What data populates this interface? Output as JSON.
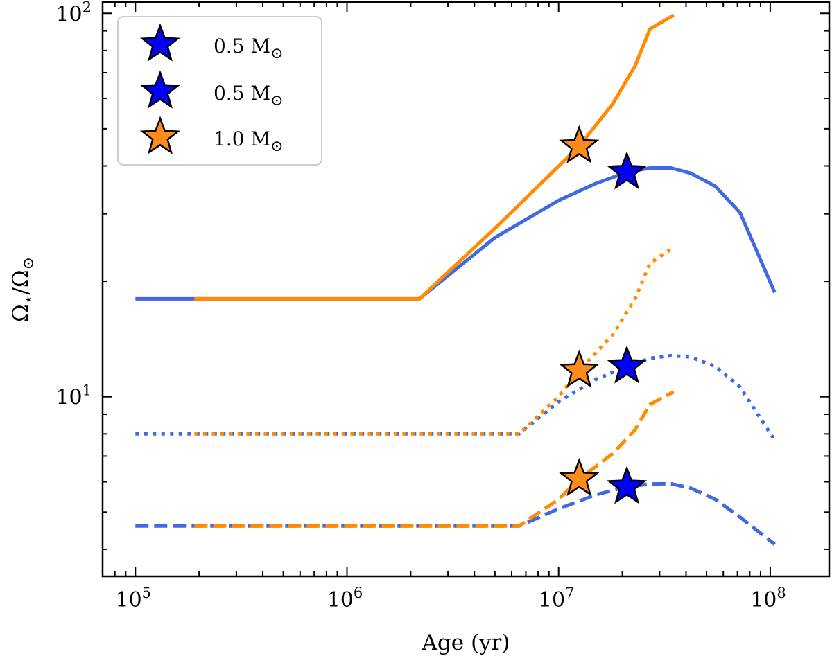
{
  "chart_data": {
    "type": "line",
    "xlabel": "Age (yr)",
    "ylabel_main": "Ω",
    "ylabel_sub1": "⋆",
    "ylabel_mid": "/Ω",
    "ylabel_sub2": "⊙",
    "xscale": "log",
    "yscale": "log",
    "xlim": [
      70000,
      190000000
    ],
    "ylim": [
      3.4,
      107
    ],
    "x_ticks": [
      {
        "value": 100000,
        "base": "10",
        "exp": "5"
      },
      {
        "value": 1000000,
        "base": "10",
        "exp": "6"
      },
      {
        "value": 10000000,
        "base": "10",
        "exp": "7"
      },
      {
        "value": 100000000,
        "base": "10",
        "exp": "8"
      }
    ],
    "y_ticks": [
      {
        "value": 10,
        "base": "10",
        "exp": "1"
      },
      {
        "value": 100,
        "base": "10",
        "exp": "2"
      }
    ],
    "colors": {
      "blue": "#4169e1",
      "orange": "#ff8c00",
      "star_blue": "#0000ff",
      "star_orange": "#ff8c1a"
    },
    "legend": {
      "location": "upper-left",
      "entries": [
        {
          "label": "0.5 M",
          "sub": "⊙",
          "color": "#0000ff"
        },
        {
          "label": "0.5 M",
          "sub": "⊙",
          "color": "#0000ff"
        },
        {
          "label": "1.0 M",
          "sub": "⊙",
          "color": "#ff8c1a"
        }
      ]
    },
    "series": [
      {
        "name": "0.5 Msun solid",
        "color": "#4169e1",
        "style": "solid",
        "x": [
          100000,
          2200000,
          5000000,
          10000000,
          15000000,
          21000000,
          27000000,
          34000000,
          42000000,
          55000000,
          72000000,
          105000000
        ],
        "y": [
          18,
          18,
          26,
          32.5,
          36,
          38.5,
          39.5,
          39.5,
          38.3,
          35.4,
          30.2,
          18.7
        ]
      },
      {
        "name": "1.0 Msun solid",
        "color": "#ff8c00",
        "style": "solid",
        "x": [
          190000,
          2200000,
          5000000,
          12500000,
          18000000,
          23000000,
          27000000,
          35000000
        ],
        "y": [
          18,
          18,
          27.5,
          45,
          58,
          73,
          91,
          99
        ]
      },
      {
        "name": "0.5 Msun dotted",
        "color": "#4169e1",
        "style": "dotted",
        "x": [
          100000,
          6500000,
          10000000,
          15000000,
          21000000,
          27000000,
          34000000,
          42000000,
          55000000,
          72000000,
          105000000
        ],
        "y": [
          8,
          8,
          9.7,
          11.1,
          12.0,
          12.6,
          12.8,
          12.7,
          12.0,
          10.6,
          7.7
        ]
      },
      {
        "name": "1.0 Msun dotted",
        "color": "#ff8c00",
        "style": "dotted",
        "x": [
          190000,
          6500000,
          10000000,
          12500000,
          18000000,
          23000000,
          27000000,
          35000000
        ],
        "y": [
          8,
          8,
          10.0,
          11.7,
          14.5,
          18.0,
          22.3,
          24.5
        ]
      },
      {
        "name": "0.5 Msun dashed",
        "color": "#4169e1",
        "style": "dashed",
        "x": [
          100000,
          6500000,
          10000000,
          15000000,
          21000000,
          27000000,
          34000000,
          42000000,
          55000000,
          72000000,
          105000000
        ],
        "y": [
          4.6,
          4.6,
          5.1,
          5.55,
          5.82,
          5.92,
          5.93,
          5.78,
          5.4,
          4.85,
          4.12
        ]
      },
      {
        "name": "1.0 Msun dashed",
        "color": "#ff8c00",
        "style": "dashed",
        "x": [
          190000,
          6500000,
          10000000,
          12500000,
          18000000,
          23000000,
          27000000,
          35000000
        ],
        "y": [
          4.6,
          4.6,
          5.4,
          6.1,
          7.1,
          8.2,
          9.55,
          10.3
        ]
      }
    ],
    "stars": [
      {
        "x": 12500000,
        "y": 45,
        "color": "#ff8c1a"
      },
      {
        "x": 21000000,
        "y": 38.5,
        "color": "#0000ff"
      },
      {
        "x": 12500000,
        "y": 11.7,
        "color": "#ff8c1a"
      },
      {
        "x": 21000000,
        "y": 12.0,
        "color": "#0000ff"
      },
      {
        "x": 12500000,
        "y": 6.1,
        "color": "#ff8c1a"
      },
      {
        "x": 21000000,
        "y": 5.82,
        "color": "#0000ff"
      }
    ]
  }
}
